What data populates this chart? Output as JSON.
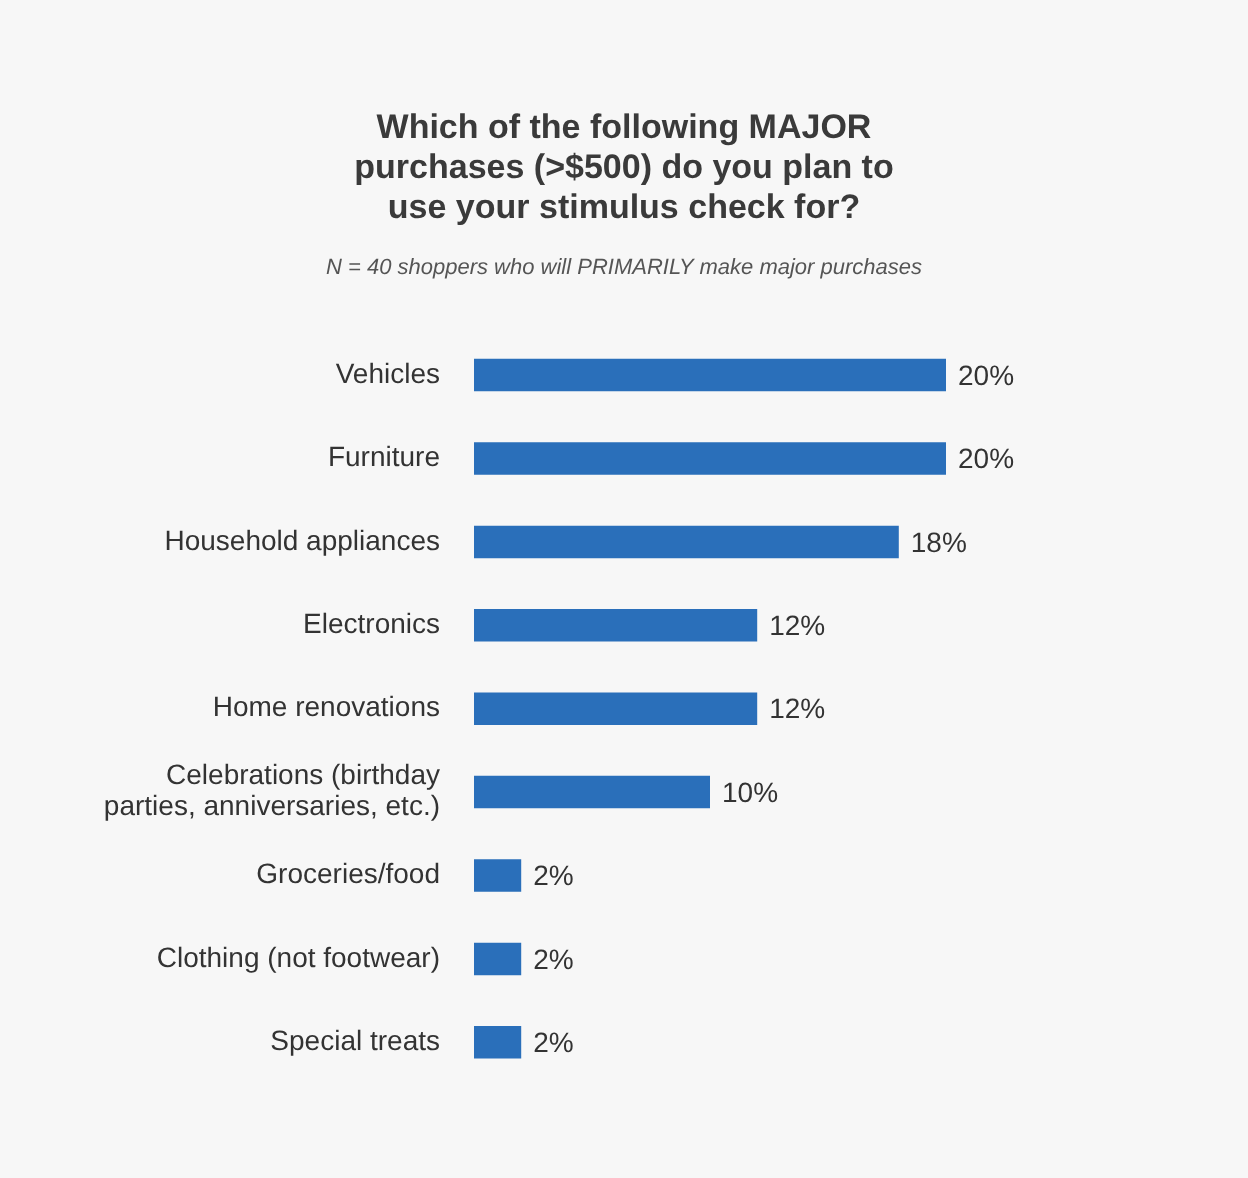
{
  "chart_data": {
    "type": "bar",
    "orientation": "horizontal",
    "title": "Which of the following MAJOR purchases (>$500) do you plan to use your stimulus check for?",
    "subtitle": "N = 40 shoppers who will PRIMARILY make major purchases",
    "categories": [
      "Vehicles",
      "Furniture",
      "Household appliances",
      "Electronics",
      "Home renovations",
      "Celebrations (birthday parties, anniversaries, etc.)",
      "Groceries/food",
      "Clothing (not footwear)",
      "Special treats"
    ],
    "values": [
      20,
      20,
      18,
      12,
      12,
      10,
      2,
      2,
      2
    ],
    "value_labels": [
      "20%",
      "20%",
      "18%",
      "12%",
      "12%",
      "10%",
      "2%",
      "2%",
      "2%"
    ],
    "color": "#2a6fba"
  }
}
